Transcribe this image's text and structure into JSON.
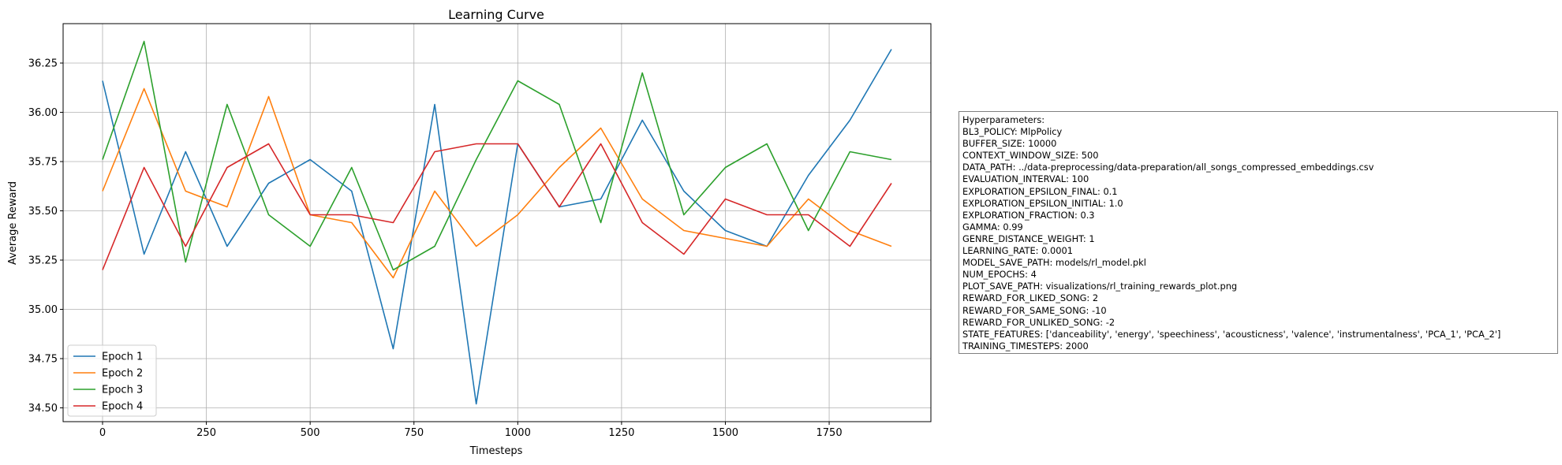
{
  "chart_data": {
    "type": "line",
    "title": "Learning Curve",
    "xlabel": "Timesteps",
    "ylabel": "Average Reward",
    "xlim": [
      -95,
      1995
    ],
    "ylim": [
      34.43,
      36.45
    ],
    "grid": true,
    "legend_position": "lower-left",
    "x_ticks": [
      0,
      250,
      500,
      750,
      1000,
      1250,
      1500,
      1750
    ],
    "x_tick_labels": [
      "0",
      "250",
      "500",
      "750",
      "1000",
      "1250",
      "1500",
      "1750"
    ],
    "y_ticks": [
      34.5,
      34.75,
      35.0,
      35.25,
      35.5,
      35.75,
      36.0,
      36.25
    ],
    "y_tick_labels": [
      "34.50",
      "34.75",
      "35.00",
      "35.25",
      "35.50",
      "35.75",
      "36.00",
      "36.25"
    ],
    "x": [
      0,
      100,
      200,
      300,
      400,
      500,
      600,
      700,
      800,
      900,
      1000,
      1100,
      1200,
      1300,
      1400,
      1500,
      1600,
      1700,
      1800,
      1900
    ],
    "series": [
      {
        "name": "Epoch 1",
        "color": "#1f77b4",
        "values": [
          36.16,
          35.28,
          35.8,
          35.32,
          35.64,
          35.76,
          35.6,
          34.8,
          36.04,
          34.52,
          35.84,
          35.52,
          35.56,
          35.96,
          35.6,
          35.4,
          35.32,
          35.68,
          35.96,
          36.32
        ]
      },
      {
        "name": "Epoch 2",
        "color": "#ff7f0e",
        "values": [
          35.6,
          36.12,
          35.6,
          35.52,
          36.08,
          35.48,
          35.44,
          35.16,
          35.6,
          35.32,
          35.48,
          35.72,
          35.92,
          35.56,
          35.4,
          35.36,
          35.32,
          35.56,
          35.4,
          35.32
        ]
      },
      {
        "name": "Epoch 3",
        "color": "#2ca02c",
        "values": [
          35.76,
          36.36,
          35.24,
          36.04,
          35.48,
          35.32,
          35.72,
          35.2,
          35.32,
          35.76,
          36.16,
          36.04,
          35.44,
          36.2,
          35.48,
          35.72,
          35.84,
          35.4,
          35.8,
          35.76
        ]
      },
      {
        "name": "Epoch 4",
        "color": "#d62728",
        "values": [
          35.2,
          35.72,
          35.32,
          35.72,
          35.84,
          35.48,
          35.48,
          35.44,
          35.8,
          35.84,
          35.84,
          35.52,
          35.84,
          35.44,
          35.28,
          35.56,
          35.48,
          35.48,
          35.32,
          35.64
        ]
      }
    ]
  },
  "hyperparameters": {
    "lines": [
      "Hyperparameters:",
      "BL3_POLICY: MlpPolicy",
      "BUFFER_SIZE: 10000",
      "CONTEXT_WINDOW_SIZE: 500",
      "DATA_PATH: ../data-preprocessing/data-preparation/all_songs_compressed_embeddings.csv",
      "EVALUATION_INTERVAL: 100",
      "EXPLORATION_EPSILON_FINAL: 0.1",
      "EXPLORATION_EPSILON_INITIAL: 1.0",
      "EXPLORATION_FRACTION: 0.3",
      "GAMMA: 0.99",
      "GENRE_DISTANCE_WEIGHT: 1",
      "LEARNING_RATE: 0.0001",
      "MODEL_SAVE_PATH: models/rl_model.pkl",
      "NUM_EPOCHS: 4",
      "PLOT_SAVE_PATH: visualizations/rl_training_rewards_plot.png",
      "REWARD_FOR_LIKED_SONG: 2",
      "REWARD_FOR_SAME_SONG: -10",
      "REWARD_FOR_UNLIKED_SONG: -2",
      "STATE_FEATURES: ['danceability', 'energy', 'speechiness', 'acousticness', 'valence', 'instrumentalness', 'PCA_1', 'PCA_2']",
      "TRAINING_TIMESTEPS: 2000"
    ]
  }
}
